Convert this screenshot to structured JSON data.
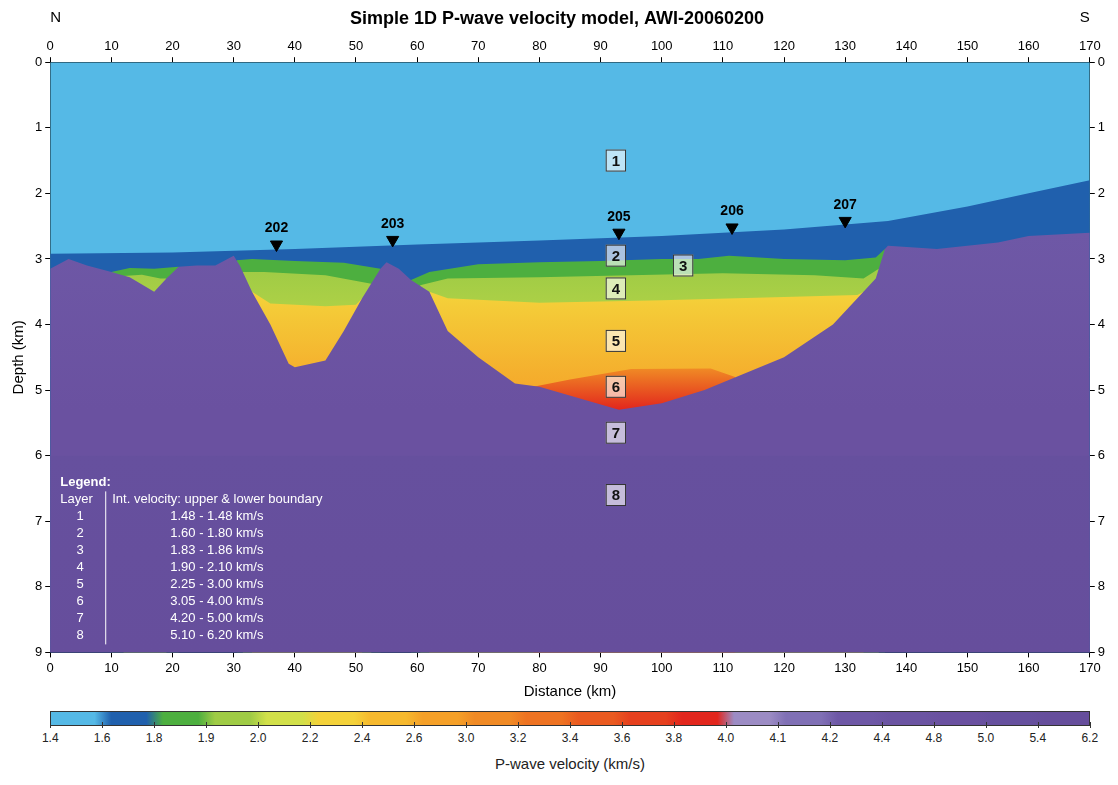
{
  "chart_data": {
    "type": "section",
    "title": "Simple 1D P-wave velocity model, AWI-20060200",
    "left_label": "N",
    "right_label": "S",
    "x_label": "Distance (km)",
    "y_label": "Depth (km)",
    "xlim": [
      0,
      170
    ],
    "xticks": [
      0,
      10,
      20,
      30,
      40,
      50,
      60,
      70,
      80,
      90,
      100,
      110,
      120,
      130,
      140,
      150,
      160,
      170
    ],
    "ylim": [
      9,
      0
    ],
    "yticks": [
      0,
      1,
      2,
      3,
      4,
      5,
      6,
      7,
      8,
      9
    ],
    "grid": false,
    "legend": "lower left",
    "legend_table": {
      "title": "Legend:",
      "header": [
        "Layer",
        "Int. velocity: upper & lower boundary"
      ]
    },
    "series": [
      {
        "name": "1",
        "velocity": [
          1.48,
          1.48
        ],
        "velocity_label": "1.48 - 1.48 km/s",
        "label_at": [
          92.5,
          1.5
        ],
        "segments": [
          [
            [
              0,
              0
            ],
            [
              170,
              0
            ]
          ]
        ]
      },
      {
        "name": "2",
        "velocity": [
          1.6,
          1.8
        ],
        "velocity_label": "1.60 - 1.80 km/s",
        "label_at": [
          92.5,
          2.95
        ],
        "segments": [
          [
            [
              0,
              2.92
            ],
            [
              20,
              2.9
            ],
            [
              40,
              2.85
            ],
            [
              60,
              2.78
            ],
            [
              80,
              2.72
            ],
            [
              100,
              2.65
            ],
            [
              120,
              2.55
            ],
            [
              137,
              2.42
            ],
            [
              150,
              2.2
            ],
            [
              160,
              2.0
            ],
            [
              170,
              1.8
            ]
          ]
        ]
      },
      {
        "name": "3",
        "velocity": [
          1.83,
          1.86
        ],
        "velocity_label": "1.83 - 1.86 km/s",
        "label_at": [
          103.5,
          3.1
        ],
        "segments": [
          [
            [
              10,
              3.2
            ],
            [
              13,
              3.14
            ],
            [
              17,
              3.15
            ],
            [
              21,
              3.12
            ]
          ],
          [
            [
              30.5,
              3.02
            ],
            [
              33,
              3.0
            ],
            [
              40,
              3.03
            ],
            [
              48,
              3.06
            ],
            [
              54,
              3.15
            ]
          ],
          [
            [
              59,
              3.32
            ],
            [
              62,
              3.2
            ],
            [
              70,
              3.08
            ],
            [
              80,
              3.05
            ],
            [
              90,
              3.03
            ],
            [
              100,
              3.0
            ],
            [
              106,
              3.0
            ],
            [
              111,
              2.95
            ],
            [
              120,
              3.0
            ],
            [
              130,
              3.02
            ],
            [
              135,
              2.98
            ],
            [
              136.5,
              2.85
            ]
          ]
        ]
      },
      {
        "name": "4",
        "velocity": [
          1.9,
          2.1
        ],
        "velocity_label": "1.90 - 2.10 km/s",
        "label_at": [
          92.5,
          3.45
        ],
        "segments": [
          [
            [
              12,
              3.26
            ],
            [
              15,
              3.24
            ],
            [
              18,
              3.3
            ],
            [
              19,
              3.3
            ]
          ],
          [
            [
              31.5,
              3.2
            ],
            [
              35,
              3.2
            ],
            [
              45,
              3.25
            ],
            [
              52.5,
              3.38
            ]
          ],
          [
            [
              60.5,
              3.4
            ],
            [
              65,
              3.3
            ],
            [
              80,
              3.28
            ],
            [
              95,
              3.25
            ],
            [
              110,
              3.22
            ],
            [
              125,
              3.25
            ],
            [
              133,
              3.3
            ],
            [
              135.5,
              3.15
            ]
          ]
        ]
      },
      {
        "name": "5",
        "velocity": [
          2.25,
          3.0
        ],
        "velocity_label": "2.25 - 3.00 km/s",
        "label_at": [
          92.5,
          4.25
        ],
        "segments": [
          [
            [
              33,
              3.5
            ],
            [
              36,
              3.68
            ],
            [
              45,
              3.72
            ],
            [
              50,
              3.7
            ],
            [
              51,
              3.6
            ]
          ],
          [
            [
              62,
              3.5
            ],
            [
              65,
              3.6
            ],
            [
              80,
              3.67
            ],
            [
              100,
              3.63
            ],
            [
              120,
              3.58
            ],
            [
              132,
              3.55
            ],
            [
              133,
              3.5
            ]
          ]
        ]
      },
      {
        "name": "6",
        "velocity": [
          3.05,
          4.0
        ],
        "velocity_label": "3.05 - 4.00 km/s",
        "label_at": [
          92.5,
          4.95
        ],
        "segments": [
          [
            [
              79,
              4.95
            ],
            [
              85,
              4.84
            ],
            [
              95,
              4.68
            ],
            [
              108,
              4.67
            ],
            [
              112,
              4.8
            ]
          ]
        ]
      },
      {
        "name": "7",
        "velocity": [
          4.2,
          5.0
        ],
        "velocity_label": "4.20 - 5.00 km/s",
        "label_at": [
          92.5,
          5.65
        ],
        "segments": [
          [
            [
              0,
              3.15
            ],
            [
              3,
              3.0
            ],
            [
              6,
              3.1
            ],
            [
              10,
              3.2
            ],
            [
              13,
              3.28
            ],
            [
              17,
              3.5
            ],
            [
              19,
              3.3
            ],
            [
              21,
              3.12
            ],
            [
              24,
              3.1
            ],
            [
              27,
              3.1
            ],
            [
              30,
              2.95
            ],
            [
              31,
              3.1
            ],
            [
              33,
              3.5
            ],
            [
              36,
              4.0
            ],
            [
              39,
              4.6
            ],
            [
              40,
              4.65
            ],
            [
              45,
              4.55
            ],
            [
              48,
              4.1
            ],
            [
              51,
              3.6
            ],
            [
              54,
              3.15
            ],
            [
              55,
              3.05
            ],
            [
              57,
              3.15
            ],
            [
              59,
              3.32
            ],
            [
              62,
              3.5
            ],
            [
              65,
              4.1
            ],
            [
              70,
              4.5
            ],
            [
              76,
              4.9
            ],
            [
              80,
              4.95
            ],
            [
              93,
              5.3
            ],
            [
              100,
              5.2
            ],
            [
              107,
              5.0
            ],
            [
              120,
              4.5
            ],
            [
              128,
              4.0
            ],
            [
              132,
              3.6
            ],
            [
              135,
              3.3
            ],
            [
              136.5,
              2.85
            ],
            [
              137,
              2.8
            ],
            [
              145,
              2.85
            ],
            [
              155,
              2.75
            ],
            [
              160,
              2.65
            ],
            [
              170,
              2.6
            ]
          ]
        ]
      },
      {
        "name": "8",
        "velocity": [
          5.1,
          6.2
        ],
        "velocity_label": "5.10 - 6.20 km/s",
        "label_at": [
          92.5,
          6.6
        ],
        "segments": [
          [
            [
              0,
              6
            ],
            [
              170,
              6
            ]
          ]
        ]
      }
    ],
    "stations": [
      {
        "label": "202",
        "x": 37,
        "depth": 2.78
      },
      {
        "label": "203",
        "x": 56,
        "depth": 2.71
      },
      {
        "label": "205",
        "x": 93,
        "depth": 2.6
      },
      {
        "label": "206",
        "x": 111.5,
        "depth": 2.52
      },
      {
        "label": "207",
        "x": 130,
        "depth": 2.42
      }
    ],
    "colorbar": {
      "label": "P-wave velocity (km/s)",
      "ticks": [
        1.4,
        1.6,
        1.8,
        1.9,
        {
          "value": 2.0,
          "label": "2.0"
        },
        2.2,
        2.4,
        2.6,
        {
          "value": 3.0,
          "label": "3.0"
        },
        3.2,
        3.4,
        3.6,
        3.8,
        {
          "value": 4.0,
          "label": "4.0"
        },
        4.1,
        4.2,
        4.4,
        4.8,
        {
          "value": 5.0,
          "label": "5.0"
        },
        5.4,
        6.2
      ],
      "colors": [
        "#55b9e6",
        "#2060ad",
        "#4daf3f",
        "#9fcb45",
        "#d2e04a",
        "#f4d23a",
        "#f6b92e",
        "#f5a028",
        "#f08a25",
        "#ee7322",
        "#ea5a20",
        "#e6401e",
        "#e2261d",
        "#9c8cc4",
        "#8070b5",
        "#6e58a6",
        "#6b54a2",
        "#6a51a0",
        "#66509e",
        "#664e9c"
      ]
    }
  }
}
